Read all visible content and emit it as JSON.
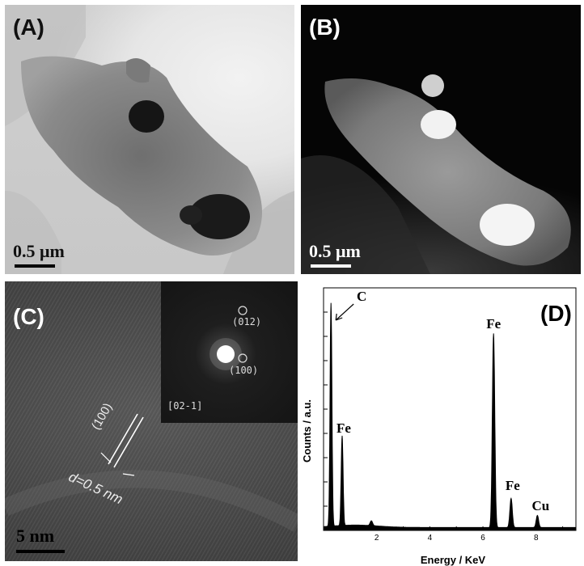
{
  "figure": {
    "panels": [
      {
        "label": "(A)",
        "scale_bar": "0.5 μm"
      },
      {
        "label": "(B)",
        "scale_bar": "0.5 μm"
      },
      {
        "label": "(C)",
        "scale_bar": "5 nm",
        "annotations": {
          "plane": "(100)",
          "d_spacing": "d=0.5 nm"
        },
        "inset": {
          "zone_axis": "[02-1]",
          "spots": [
            "(012)",
            "(100)"
          ]
        }
      },
      {
        "label": "(D)"
      }
    ]
  },
  "chart_data": {
    "type": "line",
    "title": "",
    "xlabel": "Energy / KeV",
    "ylabel": "Counts / a.u.",
    "xlim": [
      0,
      9.5
    ],
    "ylim": [
      0,
      1
    ],
    "x_ticks": [
      2,
      4,
      6,
      8
    ],
    "show_y_tick_labels": false,
    "grid": false,
    "series": [
      {
        "peaks": [
          {
            "energy": 0.28,
            "height": 0.92,
            "label": "C"
          },
          {
            "energy": 0.7,
            "height": 0.37,
            "label": "Fe"
          },
          {
            "energy": 1.8,
            "height": 0.02,
            "label": ""
          },
          {
            "energy": 6.4,
            "height": 0.8,
            "label": "Fe"
          },
          {
            "energy": 7.06,
            "height": 0.12,
            "label": "Fe"
          },
          {
            "energy": 8.05,
            "height": 0.05,
            "label": "Cu"
          }
        ]
      }
    ],
    "colors": {
      "spectrum": "#000000"
    }
  }
}
